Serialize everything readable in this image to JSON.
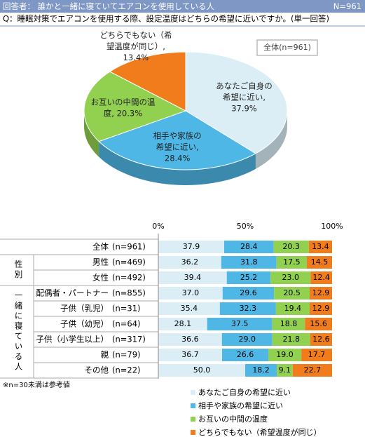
{
  "header": {
    "respondents": "回答者： 誰かと一緒に寝ていてエアコンを使用している人",
    "n": "N=961",
    "question": "Q：睡眠対策でエアコンを使用する際、設定温度はどちらの希望に近いですか。(単一回答)"
  },
  "chart_data": [
    {
      "type": "pie",
      "label": "全体(n=961)",
      "values": [
        37.9,
        28.4,
        20.3,
        13.4
      ],
      "value_labels": [
        "あなたご自身の\n希望に近い,\n37.9%",
        "相手や家族の\n希望に近い,\n28.4%",
        "お互いの中間の温\n度, 20.3%",
        "どちらでもない（希\n望温度が同じ）,\n13.4%"
      ],
      "colors": [
        "#dbeef6",
        "#4fb7e6",
        "#92d050",
        "#f07c1c"
      ]
    },
    {
      "type": "bar",
      "orientation": "horizontal",
      "stacked": true,
      "categories": [
        "全体",
        "男性",
        "女性",
        "配偶者・パートナー",
        "子供（乳児）",
        "子供（幼児）",
        "子供（小学生以上）",
        "親",
        "その他"
      ],
      "sample_sizes": [
        "(n=961)",
        "(n=469)",
        "(n=492)",
        "(n=855)",
        "(n=31)",
        "(n=64)",
        "(n=317)",
        "(n=79)",
        "(n=22)"
      ],
      "row_groups": [
        null,
        "性別",
        "性別",
        "一緒に寝ている人",
        "一緒に寝ている人",
        "一緒に寝ている人",
        "一緒に寝ている人",
        "一緒に寝ている人",
        "一緒に寝ている人"
      ],
      "xlim": [
        0,
        100
      ],
      "xticks": [
        {
          "value": 0,
          "label": "0%"
        },
        {
          "value": 50,
          "label": "50%"
        },
        {
          "value": 100,
          "label": "100%"
        }
      ],
      "series": [
        {
          "name": "あなたご自身の希望に近い",
          "color": "#dbeef6",
          "values": [
            37.9,
            36.2,
            39.4,
            37.0,
            35.4,
            28.1,
            36.6,
            36.7,
            50.0
          ],
          "value_labels": [
            "37.9",
            "36.2",
            "39.4",
            "37.0",
            "35.4",
            "28.1",
            "36.6",
            "36.7",
            "50.0"
          ]
        },
        {
          "name": "相手や家族の希望に近い",
          "color": "#4fb7e6",
          "values": [
            28.4,
            31.8,
            25.2,
            29.6,
            32.3,
            37.5,
            29.0,
            26.6,
            18.2
          ],
          "value_labels": [
            "28.4",
            "31.8",
            "25.2",
            "29.6",
            "32.3",
            "37.5",
            "29.0",
            "26.6",
            "18.2"
          ]
        },
        {
          "name": "お互いの中間の温度",
          "color": "#92d050",
          "values": [
            20.3,
            17.5,
            23.0,
            20.5,
            19.4,
            18.8,
            21.8,
            19.0,
            9.1
          ],
          "value_labels": [
            "20.3",
            "17.5",
            "23.0",
            "20.5",
            "19.4",
            "18.8",
            "21.8",
            "19.0",
            "9.1"
          ]
        },
        {
          "name": "どちらでもない（希望温度が同じ）",
          "color": "#f07c1c",
          "values": [
            13.4,
            14.5,
            12.4,
            12.9,
            12.9,
            15.6,
            12.6,
            17.7,
            22.7
          ],
          "value_labels": [
            "13.4",
            "14.5",
            "12.4",
            "12.9",
            "12.9",
            "15.6",
            "12.6",
            "17.7",
            "22.7"
          ]
        }
      ]
    }
  ],
  "note": "※n=30未満は参考値"
}
